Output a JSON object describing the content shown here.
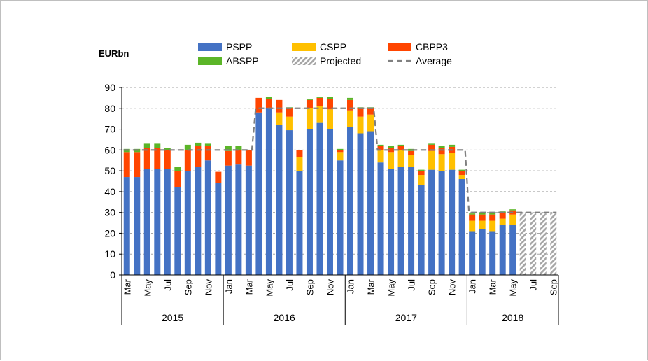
{
  "chart_data": {
    "type": "bar",
    "stacked": true,
    "unit_label": "EURbn",
    "ylim": [
      0,
      90
    ],
    "yticks": [
      0,
      10,
      20,
      30,
      40,
      50,
      60,
      70,
      80,
      90
    ],
    "grid": "horizontal dashed",
    "legend_position": "top",
    "legend": [
      {
        "key": "pspp",
        "label": "PSPP",
        "color": "#4472C4"
      },
      {
        "key": "cspp",
        "label": "CSPP",
        "color": "#FFC000"
      },
      {
        "key": "cbpp3",
        "label": "CBPP3",
        "color": "#FF4500"
      },
      {
        "key": "abspp",
        "label": "ABSPP",
        "color": "#5BB528"
      },
      {
        "key": "projected",
        "label": "Projected",
        "color": "#A6A6A6"
      },
      {
        "key": "average",
        "label": "Average",
        "color": "#808080"
      }
    ],
    "months": [
      "2015-03",
      "2015-04",
      "2015-05",
      "2015-06",
      "2015-07",
      "2015-08",
      "2015-09",
      "2015-10",
      "2015-11",
      "2015-12",
      "2016-01",
      "2016-02",
      "2016-03",
      "2016-04",
      "2016-05",
      "2016-06",
      "2016-07",
      "2016-08",
      "2016-09",
      "2016-10",
      "2016-11",
      "2016-12",
      "2017-01",
      "2017-02",
      "2017-03",
      "2017-04",
      "2017-05",
      "2017-06",
      "2017-07",
      "2017-08",
      "2017-09",
      "2017-10",
      "2017-11",
      "2017-12",
      "2018-01",
      "2018-02",
      "2018-03",
      "2018-04",
      "2018-05",
      "2018-06",
      "2018-07",
      "2018-08",
      "2018-09"
    ],
    "tick_labels": [
      "Mar",
      "",
      "May",
      "",
      "Jul",
      "",
      "Sep",
      "",
      "Nov",
      "",
      "Jan",
      "",
      "Mar",
      "",
      "May",
      "",
      "Jul",
      "",
      "Sep",
      "",
      "Nov",
      "",
      "Jan",
      "",
      "Mar",
      "",
      "May",
      "",
      "Jul",
      "",
      "Sep",
      "",
      "Nov",
      "",
      "Jan",
      "",
      "Mar",
      "",
      "May",
      "",
      "Jul",
      "",
      "Sep"
    ],
    "years": [
      {
        "label": "2015",
        "start": 0,
        "end": 9
      },
      {
        "label": "2016",
        "start": 10,
        "end": 21
      },
      {
        "label": "2017",
        "start": 22,
        "end": 33
      },
      {
        "label": "2018",
        "start": 34,
        "end": 42
      }
    ],
    "series": [
      {
        "key": "pspp",
        "values": [
          47,
          47,
          51,
          51,
          51,
          42,
          50,
          52,
          55,
          44,
          52.5,
          53,
          52.5,
          78,
          80,
          72,
          69.5,
          50,
          70,
          73,
          70,
          55,
          71,
          68,
          69,
          54,
          51,
          52,
          52,
          43,
          50.5,
          50,
          50.5,
          46,
          21,
          22,
          21,
          24,
          24,
          0,
          0,
          0,
          0
        ]
      },
      {
        "key": "cspp",
        "values": [
          0,
          0,
          0,
          0,
          0,
          0,
          0,
          0,
          0,
          0,
          0,
          0,
          0,
          0,
          0,
          6,
          6.5,
          6.5,
          10,
          8,
          9.5,
          4,
          8,
          8,
          8,
          6,
          8,
          8,
          5.5,
          5,
          9,
          8,
          8,
          2,
          5,
          4,
          5,
          3,
          5,
          0,
          0,
          0,
          0
        ]
      },
      {
        "key": "cbpp3",
        "values": [
          12,
          12,
          10,
          10,
          9,
          8,
          10,
          10,
          7,
          5.5,
          7,
          7,
          7.5,
          7,
          4.5,
          6,
          4,
          3.5,
          4,
          4,
          5,
          1,
          5,
          4,
          3,
          2,
          2,
          2,
          2,
          2,
          3,
          3,
          3,
          2,
          3,
          3,
          3,
          3,
          2,
          0,
          0,
          0,
          0
        ]
      },
      {
        "key": "abspp",
        "values": [
          1.5,
          1.5,
          2,
          2,
          1,
          2,
          2.5,
          1.5,
          1,
          0,
          2.5,
          2,
          0,
          0,
          1,
          0,
          0.5,
          0,
          0.5,
          0.5,
          1,
          0.5,
          1,
          0.5,
          0.5,
          0.5,
          1,
          0.5,
          1,
          0.5,
          0.5,
          1,
          1,
          0.5,
          0.5,
          1,
          1,
          0.5,
          0.5,
          0,
          0,
          0,
          0
        ]
      },
      {
        "key": "projected",
        "values": [
          0,
          0,
          0,
          0,
          0,
          0,
          0,
          0,
          0,
          0,
          0,
          0,
          0,
          0,
          0,
          0,
          0,
          0,
          0,
          0,
          0,
          0,
          0,
          0,
          0,
          0,
          0,
          0,
          0,
          0,
          0,
          0,
          0,
          0,
          0,
          0,
          0,
          0,
          0,
          30,
          30,
          30,
          30
        ]
      }
    ],
    "average": [
      60,
      60,
      60,
      60,
      60,
      60,
      60,
      60,
      60,
      60,
      60,
      60,
      60,
      80,
      80,
      80,
      80,
      80,
      80,
      80,
      80,
      80,
      80,
      80,
      80,
      60,
      60,
      60,
      60,
      60,
      60,
      60,
      60,
      60,
      30,
      30,
      30,
      30,
      30,
      30,
      30,
      30,
      30
    ]
  }
}
